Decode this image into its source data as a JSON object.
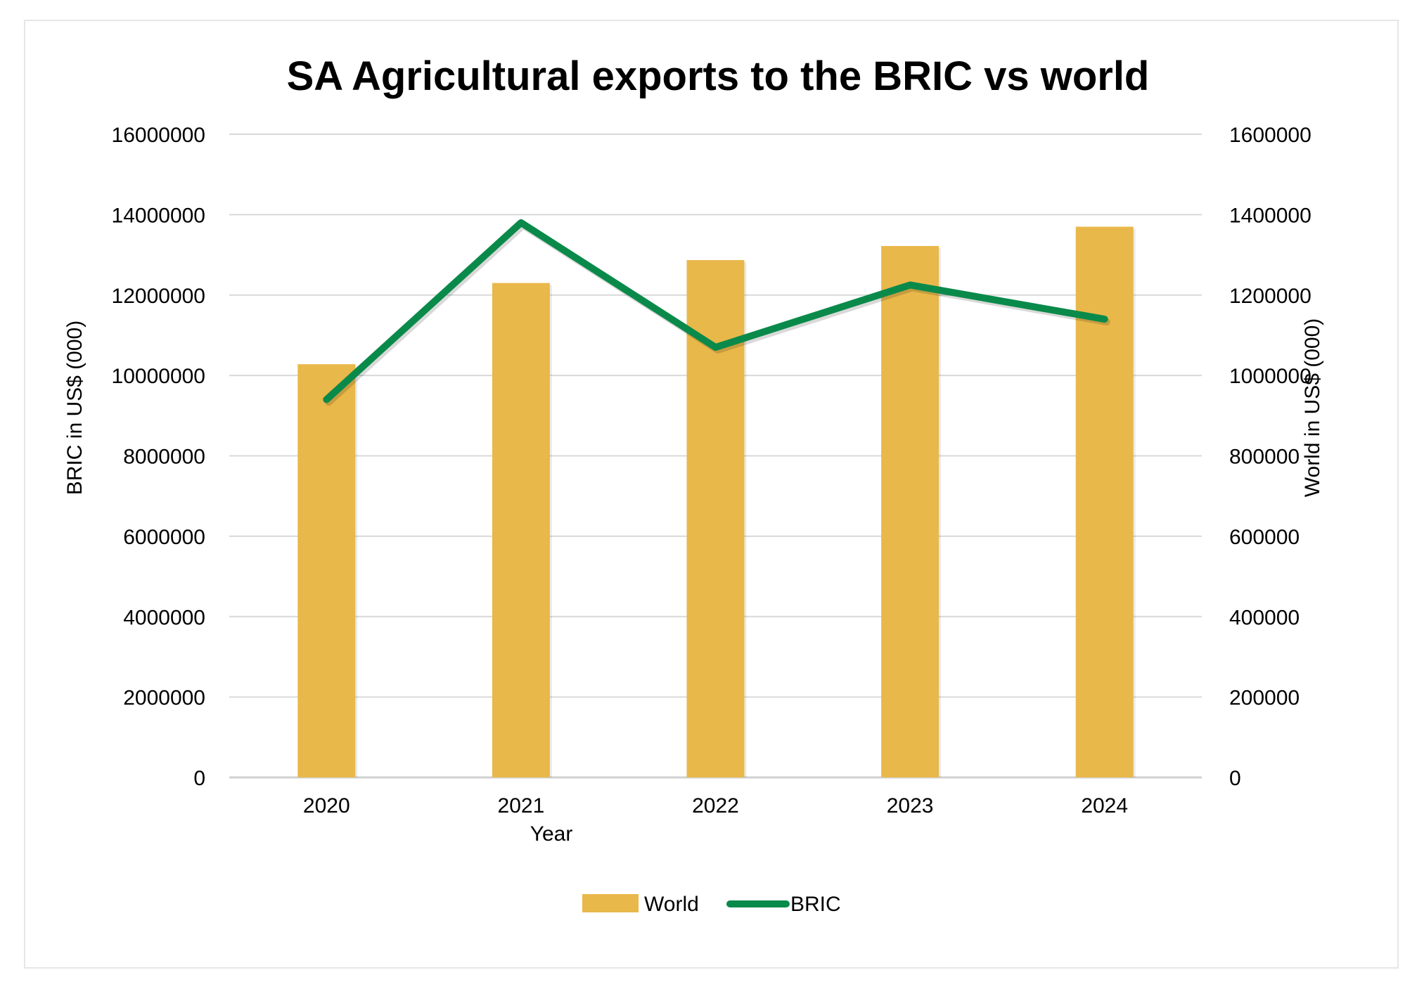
{
  "chart_data": {
    "type": "bar",
    "title": "SA Agricultural exports to the BRIC vs world",
    "xlabel": "Year",
    "ylabel_left": "BRIC in US$ (000)",
    "ylabel_right": "World in US$ (000)",
    "ylim_left": [
      0,
      16000000
    ],
    "ylim_right": [
      0,
      1600000
    ],
    "yticks_left": [
      "0",
      "2000000",
      "4000000",
      "6000000",
      "8000000",
      "10000000",
      "12000000",
      "14000000",
      "16000000"
    ],
    "yticks_right": [
      "0",
      "200000",
      "400000",
      "600000",
      "800000",
      "1000000",
      "1200000",
      "1400000",
      "1600000"
    ],
    "categories": [
      "2020",
      "2021",
      "2022",
      "2023",
      "2024"
    ],
    "grid": true,
    "legend_position": "bottom",
    "series": [
      {
        "name": "World",
        "type": "bar",
        "axis": "right",
        "color": "#E9B84A",
        "values": [
          1028000,
          1230000,
          1287000,
          1322000,
          1370000
        ]
      },
      {
        "name": "BRIC",
        "type": "line",
        "axis": "left",
        "color": "#0A8A4A",
        "values": [
          9400000,
          13800000,
          10700000,
          12250000,
          11400000
        ]
      }
    ]
  }
}
